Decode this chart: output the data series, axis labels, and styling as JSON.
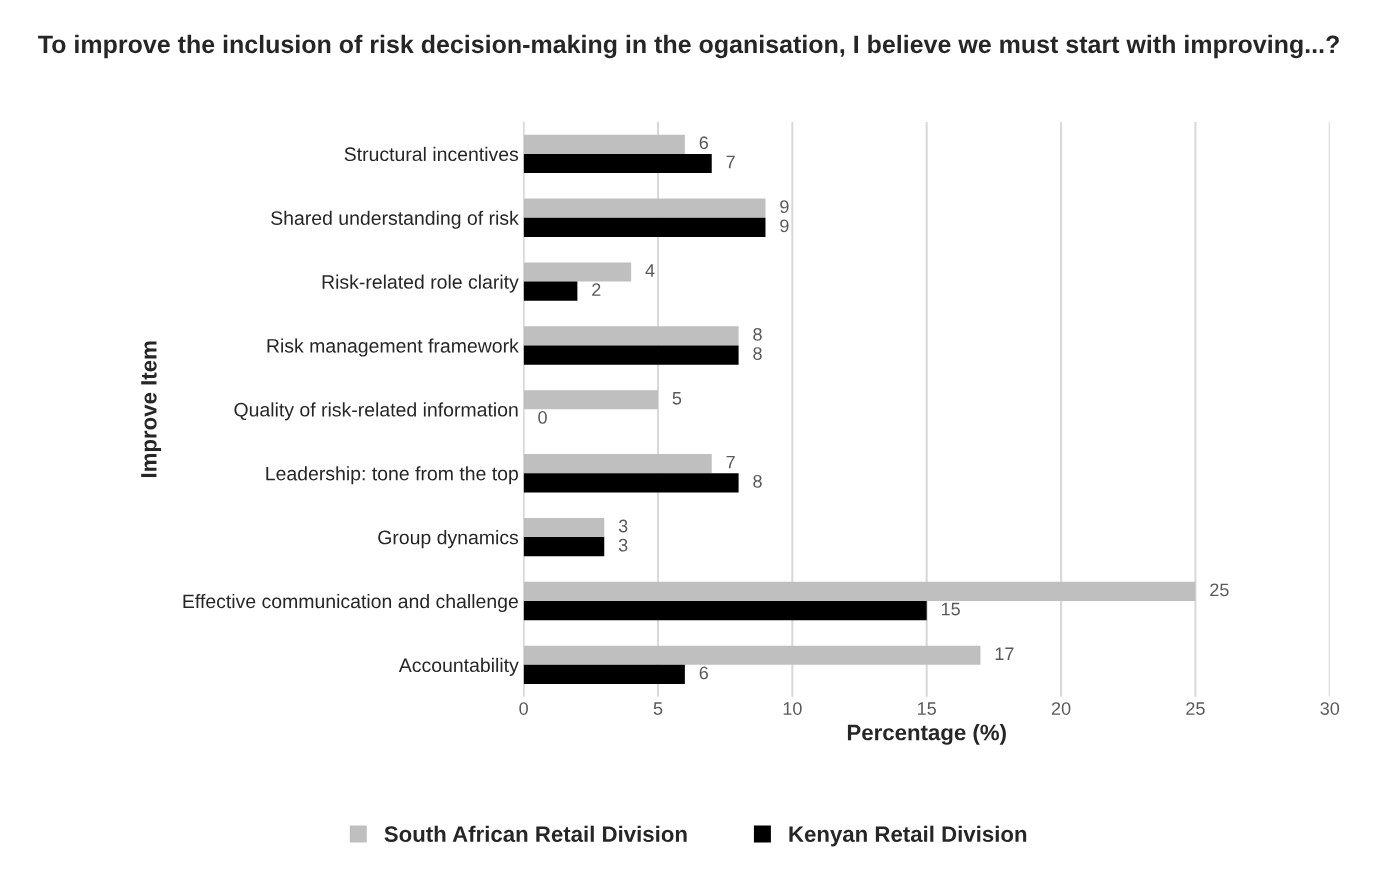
{
  "chart_data": {
    "type": "bar",
    "orientation": "horizontal",
    "title": "To improve the inclusion of risk decision-making in the oganisation, I believe we must start with improving...?",
    "xlabel": "Percentage (%)",
    "ylabel": "Improve Item",
    "categories": [
      "Structural incentives",
      "Shared understanding of risk",
      "Risk-related role clarity",
      "Risk management framework",
      "Quality of risk-related information",
      "Leadership: tone from the top",
      "Group dynamics",
      "Effective communication and challenge",
      "Accountability"
    ],
    "series": [
      {
        "name": "South African Retail Division",
        "color": "#bfbfbf",
        "values": [
          6,
          9,
          4,
          8,
          5,
          7,
          3,
          25,
          17
        ]
      },
      {
        "name": "Kenyan Retail Division",
        "color": "#000000",
        "values": [
          7,
          9,
          2,
          8,
          0,
          8,
          3,
          15,
          6
        ]
      }
    ],
    "xlim": [
      0,
      30
    ],
    "xticks": [
      0,
      5,
      10,
      15,
      20,
      25,
      30
    ],
    "grid": "x",
    "legend": "bottom",
    "data_labels": true
  }
}
